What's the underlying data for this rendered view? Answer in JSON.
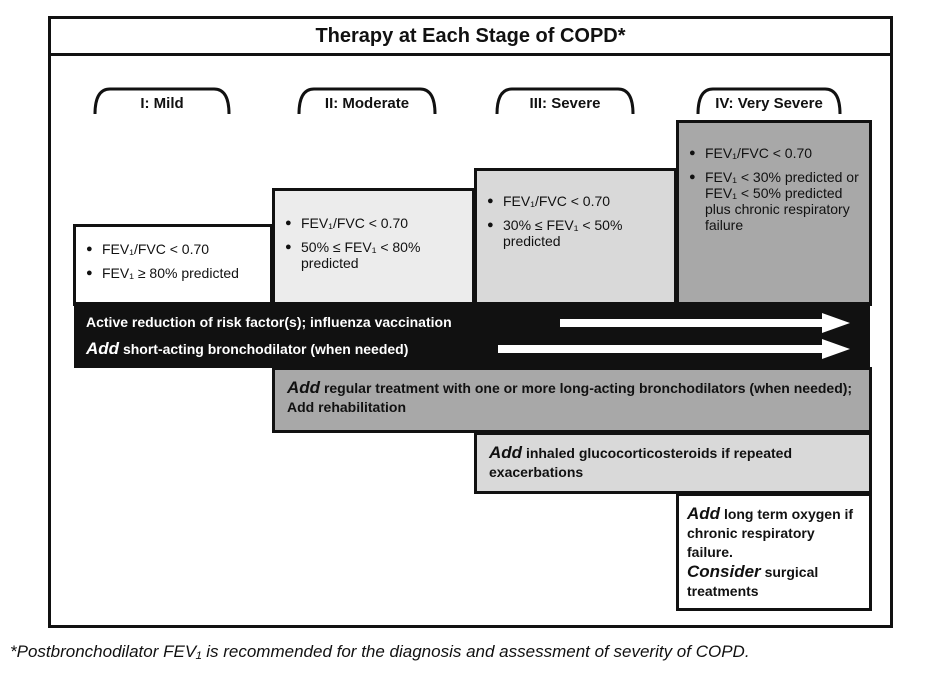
{
  "title": "Therapy at Each Stage of COPD*",
  "stages": [
    {
      "label": "I: Mild"
    },
    {
      "label": "II: Moderate"
    },
    {
      "label": "III: Severe"
    },
    {
      "label": "IV: Very Severe"
    }
  ],
  "criteria": {
    "mild": [
      "FEV₁/FVC < 0.70",
      "FEV₁ ≥ 80% predicted"
    ],
    "moderate": [
      "FEV₁/FVC < 0.70",
      "50% ≤ FEV₁ < 80% predicted"
    ],
    "severe": [
      "FEV₁/FVC < 0.70",
      "30% ≤ FEV₁ < 50% predicted"
    ],
    "very_severe": [
      "FEV₁/FVC < 0.70",
      "FEV₁ < 30% predicted or FEV₁ < 50% predicted plus chronic respiratory failure"
    ]
  },
  "all_stages": {
    "line1": "Active reduction of risk factor(s); influenza vaccination",
    "line2_add": "Add",
    "line2_rest": "short-acting bronchodilator (when needed)"
  },
  "treatments": {
    "moderate_add": "Add",
    "moderate_rest": "regular treatment with one or more long-acting bronchodilators (when needed); Add rehabilitation",
    "severe_add": "Add",
    "severe_rest": "inhaled glucocorticosteroids if repeated exacerbations",
    "very_severe_add": "Add",
    "very_severe_rest": "long term oxygen if chronic respiratory failure.",
    "very_severe_consider": "Consider",
    "very_severe_consider_rest": "surgical treatments"
  },
  "footnote": "*Postbronchodilator FEV₁ is recommended for the diagnosis and assessment of severity of COPD.",
  "colors": {
    "white": "#ffffff",
    "light_gray": "#ececec",
    "mid_gray": "#d9d9d9",
    "dark_gray": "#a8a8a8",
    "black": "#111111"
  }
}
